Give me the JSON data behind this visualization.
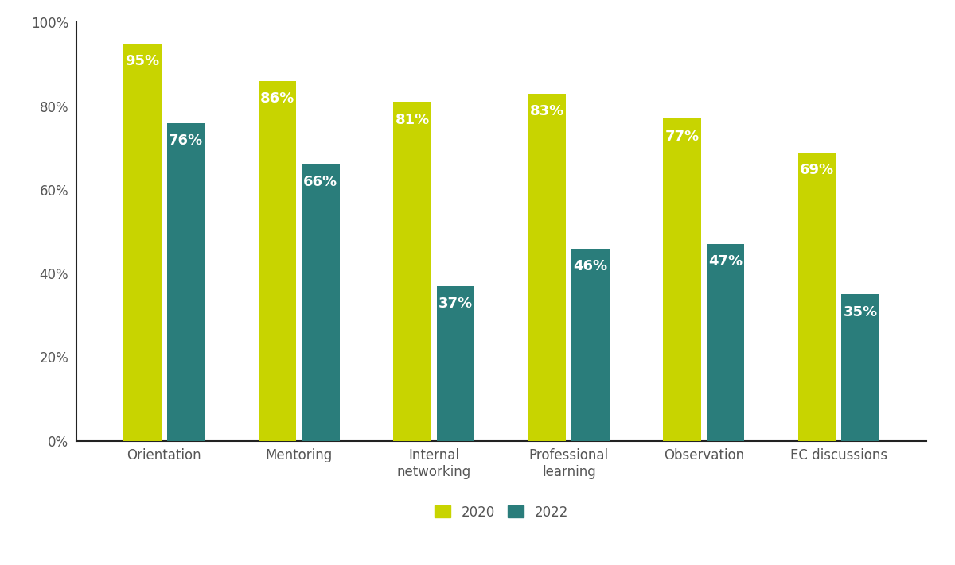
{
  "categories": [
    "Orientation",
    "Mentoring",
    "Internal\nnetworking",
    "Professional\nlearning",
    "Observation",
    "EC discussions"
  ],
  "values_2020": [
    95,
    86,
    81,
    83,
    77,
    69
  ],
  "values_2022": [
    76,
    66,
    37,
    46,
    47,
    35
  ],
  "color_2020": "#c8d400",
  "color_2022": "#2a7d7b",
  "bar_width": 0.28,
  "bar_gap": 0.04,
  "ylim": [
    0,
    100
  ],
  "yticks": [
    0,
    20,
    40,
    60,
    80,
    100
  ],
  "ytick_labels": [
    "0%",
    "20%",
    "40%",
    "60%",
    "80%",
    "100%"
  ],
  "legend_labels": [
    "2020",
    "2022"
  ],
  "label_fontsize": 13,
  "tick_fontsize": 12,
  "legend_fontsize": 12,
  "background_color": "#ffffff",
  "spine_color": "#222222",
  "tick_color": "#555555"
}
